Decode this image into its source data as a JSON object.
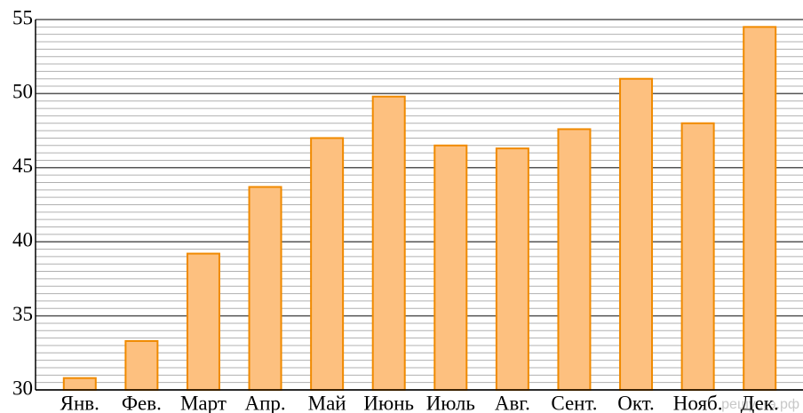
{
  "chart_data": {
    "type": "bar",
    "categories": [
      "Янв.",
      "Фев.",
      "Март",
      "Апр.",
      "Май",
      "Июнь",
      "Июль",
      "Авг.",
      "Сент.",
      "Окт.",
      "Нояб.",
      "Дек."
    ],
    "values": [
      30.8,
      33.3,
      39.2,
      43.7,
      47.0,
      49.8,
      46.5,
      46.3,
      47.6,
      51.0,
      48.0,
      54.5
    ],
    "color": "#fdc07f",
    "edge_color": "#f08a00",
    "ylim": [
      30,
      55
    ],
    "yticks": [
      30,
      35,
      40,
      45,
      50,
      55
    ],
    "yticks_minor": [
      30,
      30.5,
      31,
      31.5,
      32,
      32.5,
      33,
      33.5,
      34,
      34.5,
      35,
      35.5,
      36,
      36.5,
      37,
      37.5,
      38,
      38.5,
      39,
      39.5,
      40,
      40.5,
      41,
      41.5,
      42,
      42.5,
      43,
      43.5,
      44,
      44.5,
      45,
      45.5,
      46,
      46.5,
      47,
      47.5,
      48,
      48.5,
      49,
      49.5,
      50,
      50.5,
      51,
      51.5,
      52,
      52.5,
      53,
      53.5,
      54,
      54.5,
      55
    ],
    "grid": true,
    "watermark": "решуегэ.рф"
  }
}
